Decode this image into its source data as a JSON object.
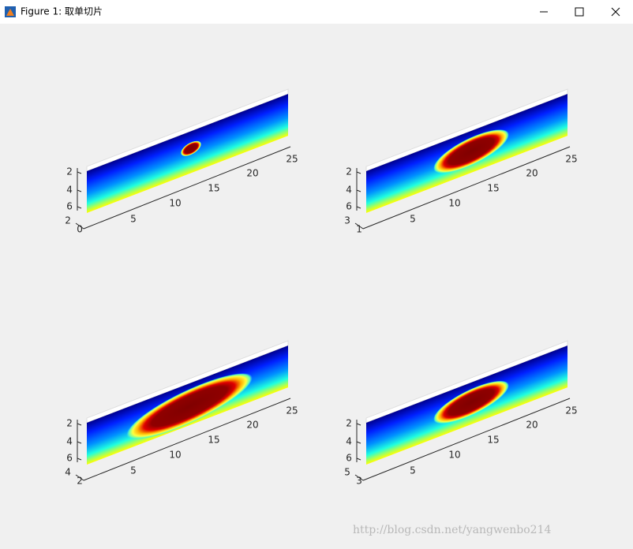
{
  "window": {
    "title": "Figure 1: 取单切片"
  },
  "subplots": [
    {
      "xticks": [
        5,
        10,
        15,
        20,
        25
      ],
      "zticks": [
        2,
        4,
        6
      ],
      "yticks": [
        2,
        0
      ]
    },
    {
      "xticks": [
        5,
        10,
        15,
        20,
        25
      ],
      "zticks": [
        2,
        4,
        6
      ],
      "yticks": [
        3,
        1
      ]
    },
    {
      "xticks": [
        5,
        10,
        15,
        20,
        25
      ],
      "zticks": [
        2,
        4,
        6
      ],
      "yticks": [
        4,
        2
      ]
    },
    {
      "xticks": [
        5,
        10,
        15,
        20,
        25
      ],
      "zticks": [
        2,
        4,
        6
      ],
      "yticks": [
        5,
        3
      ]
    }
  ],
  "watermark": "http://blog.csdn.net/yangwenbo214"
}
